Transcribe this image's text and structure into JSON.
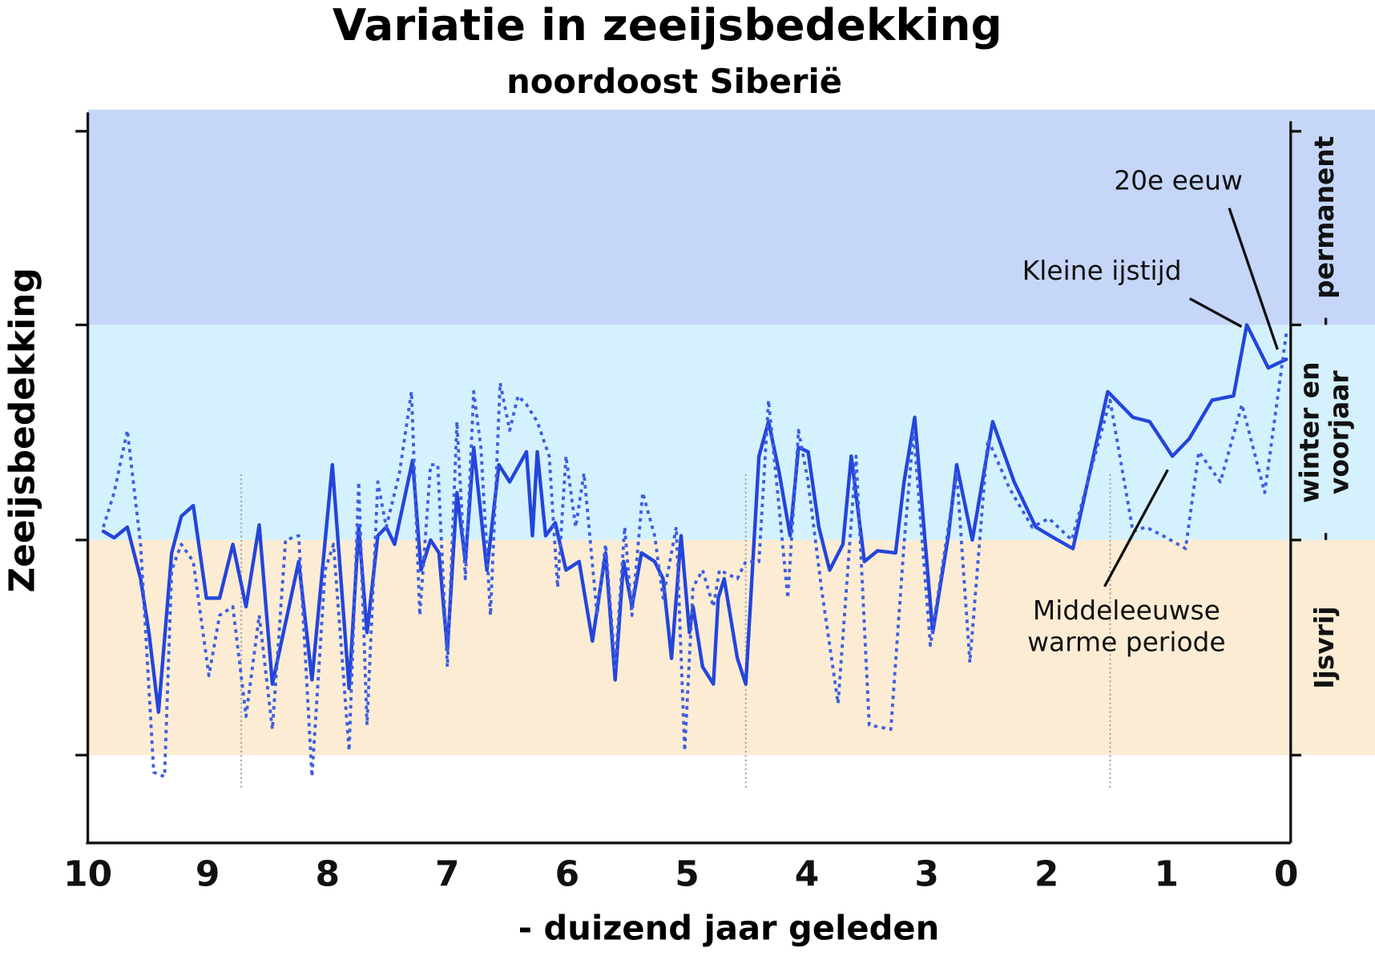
{
  "chart_data": {
    "type": "line",
    "title": "Variatie in zeeijsbedekking",
    "subtitle": "noordoost Siberië",
    "x_label": "- duizend jaar geleden",
    "y_label": "Zeeijsbedekking",
    "xlim": [
      10,
      0
    ],
    "xticks": [
      10,
      9,
      8,
      7,
      6,
      5,
      4,
      3,
      2,
      1,
      0
    ],
    "ylim": [
      -0.4,
      3
    ],
    "yticks": [
      0,
      1,
      2,
      2.9
    ],
    "bands": [
      {
        "from": 2,
        "to": 3,
        "color": "#c6d6f9",
        "label": [
          "permanent"
        ]
      },
      {
        "from": 1,
        "to": 2,
        "color": "#d5f1fd",
        "label": [
          "winter en",
          "voorjaar"
        ]
      },
      {
        "from": 0,
        "to": 1,
        "color": "#fcecd4",
        "label": [
          "Ijsvrij"
        ]
      }
    ],
    "vlines": [
      8.72,
      4.51,
      1.47
    ],
    "annotations": [
      {
        "text": [
          "20e eeuw"
        ]
      },
      {
        "text": [
          "Kleine ijstijd"
        ]
      },
      {
        "text": [
          "Middeleeuwse",
          "warme periode"
        ]
      }
    ],
    "series": [
      {
        "style": "solid",
        "color": "#2345dc",
        "x": [
          9.87,
          9.78,
          9.67,
          9.56,
          9.49,
          9.41,
          9.3,
          9.22,
          9.12,
          9.01,
          8.9,
          8.79,
          8.68,
          8.57,
          8.46,
          8.24,
          8.13,
          7.96,
          7.82,
          7.74,
          7.67,
          7.58,
          7.51,
          7.44,
          7.29,
          7.22,
          7.14,
          7.07,
          7.0,
          6.92,
          6.85,
          6.78,
          6.67,
          6.57,
          6.48,
          6.34,
          6.29,
          6.25,
          6.18,
          6.1,
          6.01,
          5.9,
          5.79,
          5.68,
          5.6,
          5.53,
          5.46,
          5.38,
          5.27,
          5.2,
          5.13,
          5.05,
          4.98,
          4.95,
          4.87,
          4.78,
          4.74,
          4.69,
          4.58,
          4.51,
          4.4,
          4.32,
          4.23,
          4.14,
          4.07,
          3.99,
          3.9,
          3.81,
          3.7,
          3.63,
          3.52,
          3.41,
          3.26,
          3.19,
          3.1,
          2.95,
          2.82,
          2.75,
          2.62,
          2.45,
          2.27,
          2.09,
          1.94,
          1.78,
          1.49,
          1.28,
          1.14,
          0.95,
          0.81,
          0.62,
          0.44,
          0.33,
          0.15,
          0
        ],
        "values": [
          1.04,
          1.01,
          1.06,
          0.82,
          0.57,
          0.2,
          0.94,
          1.11,
          1.16,
          0.73,
          0.73,
          0.98,
          0.69,
          1.07,
          0.33,
          0.9,
          0.35,
          1.35,
          0.31,
          1.06,
          0.57,
          1.02,
          1.06,
          0.98,
          1.37,
          0.86,
          1.0,
          0.94,
          0.49,
          1.22,
          0.9,
          1.43,
          0.86,
          1.35,
          1.27,
          1.41,
          1.02,
          1.41,
          1.02,
          1.08,
          0.86,
          0.9,
          0.53,
          0.94,
          0.35,
          0.9,
          0.69,
          0.94,
          0.9,
          0.82,
          0.45,
          1.02,
          0.57,
          0.69,
          0.41,
          0.33,
          0.73,
          0.82,
          0.45,
          0.33,
          1.39,
          1.55,
          1.31,
          1.02,
          1.43,
          1.41,
          1.06,
          0.86,
          0.98,
          1.39,
          0.9,
          0.95,
          0.94,
          1.27,
          1.57,
          0.57,
          1.02,
          1.35,
          1.0,
          1.55,
          1.27,
          1.06,
          1.01,
          0.96,
          1.69,
          1.57,
          1.55,
          1.39,
          1.47,
          1.65,
          1.67,
          2.0,
          1.8,
          1.84
        ]
      },
      {
        "style": "dotted",
        "color": "#3d5ee0",
        "x": [
          9.87,
          9.78,
          9.67,
          9.56,
          9.45,
          9.36,
          9.3,
          9.22,
          9.12,
          8.99,
          8.9,
          8.79,
          8.68,
          8.57,
          8.46,
          8.35,
          8.24,
          8.13,
          8.02,
          7.95,
          7.82,
          7.74,
          7.67,
          7.58,
          7.51,
          7.4,
          7.3,
          7.23,
          7.14,
          7.08,
          7.0,
          6.92,
          6.85,
          6.78,
          6.72,
          6.64,
          6.56,
          6.48,
          6.41,
          6.34,
          6.25,
          6.15,
          6.08,
          6.01,
          5.93,
          5.86,
          5.75,
          5.68,
          5.6,
          5.52,
          5.46,
          5.37,
          5.27,
          5.2,
          5.09,
          5.02,
          4.95,
          4.87,
          4.78,
          4.73,
          4.58,
          4.51,
          4.4,
          4.32,
          4.23,
          4.16,
          4.07,
          3.99,
          3.88,
          3.74,
          3.59,
          3.48,
          3.3,
          3.19,
          3.11,
          2.97,
          2.82,
          2.75,
          2.64,
          2.49,
          2.31,
          2.12,
          1.98,
          1.79,
          1.47,
          1.28,
          1.17,
          1.03,
          0.84,
          0.73,
          0.55,
          0.37,
          0.18,
          0
        ],
        "values": [
          1.06,
          1.22,
          1.51,
          0.98,
          -0.08,
          -0.1,
          0.86,
          0.98,
          0.9,
          0.37,
          0.65,
          0.69,
          0.18,
          0.65,
          0.12,
          1.0,
          1.02,
          -0.1,
          0.86,
          0.98,
          0.02,
          1.27,
          0.14,
          1.27,
          1.06,
          1.31,
          1.69,
          0.65,
          1.35,
          1.35,
          0.41,
          1.55,
          0.82,
          1.69,
          1.43,
          0.65,
          1.73,
          1.51,
          1.67,
          1.63,
          1.55,
          1.39,
          0.78,
          1.39,
          1.06,
          1.31,
          0.65,
          0.98,
          0.41,
          1.06,
          0.65,
          1.22,
          1.02,
          0.73,
          1.06,
          0.02,
          0.78,
          0.86,
          0.69,
          0.86,
          0.82,
          0.9,
          0.9,
          1.65,
          1.14,
          0.73,
          1.51,
          1.27,
          0.78,
          0.24,
          1.39,
          0.14,
          0.12,
          0.98,
          1.51,
          0.51,
          1.06,
          1.31,
          0.43,
          1.47,
          1.24,
          1.06,
          1.1,
          1.0,
          1.65,
          1.04,
          1.06,
          1.02,
          0.96,
          1.41,
          1.27,
          1.63,
          1.22,
          1.96
        ]
      }
    ]
  }
}
